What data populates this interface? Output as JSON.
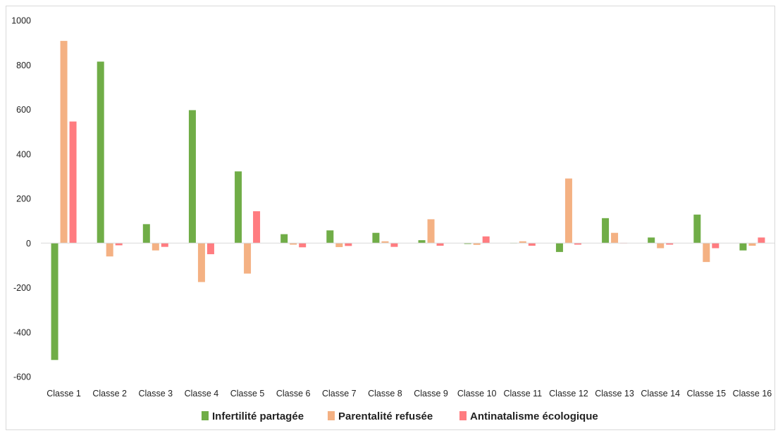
{
  "chart_data": {
    "type": "bar",
    "categories": [
      "Classe 1",
      "Classe 2",
      "Classe 3",
      "Classe 4",
      "Classe 5",
      "Classe 6",
      "Classe 7",
      "Classe 8",
      "Classe 9",
      "Classe 10",
      "Classe 11",
      "Classe 12",
      "Classe 13",
      "Classe 14",
      "Classe 15",
      "Classe 16"
    ],
    "series": [
      {
        "name": "Infertilité partagée",
        "color": "#70ad47",
        "values": [
          -525,
          815,
          85,
          597,
          322,
          40,
          57,
          46,
          13,
          -4,
          1,
          -40,
          112,
          25,
          128,
          -33
        ]
      },
      {
        "name": "Parentalité refusée",
        "color": "#f4b183",
        "values": [
          908,
          -60,
          -33,
          -175,
          -137,
          -7,
          -18,
          8,
          107,
          -8,
          8,
          290,
          46,
          -23,
          -85,
          -12
        ]
      },
      {
        "name": "Antinatalisme écologique",
        "color": "#ff7c80",
        "values": [
          546,
          -10,
          -17,
          -50,
          143,
          -19,
          -13,
          -17,
          -12,
          30,
          -12,
          -7,
          1,
          -7,
          -23,
          25
        ]
      }
    ],
    "yticks": [
      "1000",
      "800",
      "600",
      "400",
      "200",
      "0",
      "-200",
      "-400",
      "-600"
    ],
    "ylim": [
      -600,
      1000
    ],
    "grid": false,
    "legend": "bottom",
    "title": "",
    "xlabel": "",
    "ylabel": ""
  }
}
